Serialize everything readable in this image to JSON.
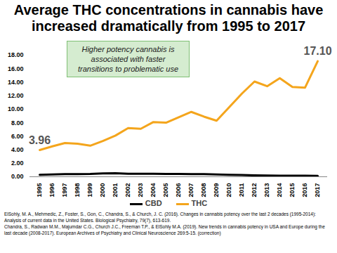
{
  "chart_data": {
    "type": "line",
    "title": "Average THC concentrations in cannabis have increased dramatically from 1995 to 2017",
    "categories": [
      "1995",
      "1996",
      "1997",
      "1998",
      "1999",
      "2000",
      "2001",
      "2002",
      "2003",
      "2004",
      "2005",
      "2006",
      "2007",
      "2008",
      "2009",
      "2010",
      "2011",
      "2012",
      "2013",
      "2014",
      "2015",
      "2016",
      "2017"
    ],
    "series": [
      {
        "name": "CBD",
        "color": "#000000",
        "values": [
          0.28,
          0.35,
          0.4,
          0.4,
          0.42,
          0.5,
          0.52,
          0.45,
          0.45,
          0.45,
          0.42,
          0.42,
          0.4,
          0.38,
          0.35,
          0.28,
          0.25,
          0.2,
          0.18,
          0.15,
          0.15,
          0.15,
          0.12
        ]
      },
      {
        "name": "THC",
        "color": "#f4a51c",
        "values": [
          3.96,
          4.5,
          5.0,
          4.9,
          4.6,
          5.3,
          6.1,
          7.2,
          7.1,
          8.1,
          8.0,
          8.8,
          9.6,
          8.9,
          8.3,
          10.3,
          12.3,
          14.1,
          13.4,
          14.6,
          13.3,
          13.2,
          17.1
        ]
      }
    ],
    "ylim": [
      0,
      18
    ],
    "yticks": [
      {
        "value": 0,
        "label": "0.00"
      },
      {
        "value": 2,
        "label": "2.00"
      },
      {
        "value": 4,
        "label": "4.00"
      },
      {
        "value": 6,
        "label": "6.00"
      },
      {
        "value": 8,
        "label": "8.00"
      },
      {
        "value": 10,
        "label": "10.00"
      },
      {
        "value": 12,
        "label": "12.00"
      },
      {
        "value": 14,
        "label": "14.00"
      },
      {
        "value": 16,
        "label": "16.00"
      },
      {
        "value": 18,
        "label": "18.00"
      }
    ],
    "grid": false,
    "legend": "bottom",
    "annotations": [
      {
        "x": "1995",
        "y": 3.96,
        "text": "3.96"
      },
      {
        "x": "2017",
        "y": 17.1,
        "text": "17.10"
      }
    ],
    "note": [
      "Higher potency cannabis is",
      "associated with faster",
      "transitions to problematic use"
    ],
    "references": [
      "ElSohly, M. A., Mehmedic, Z., Foster, S., Gon, C., Chandra, S., & Church, J. C. (2016). Changes in cannabis potency over the last 2 decades (1995-2014): Analysis of current data in the United States. Biological Psychiatry, 79(7), 613-619.",
      "Chandra, S., Radwan M.M., Majumdar C.G., Church J.C., Freeman T.P., & ElSohly M.A. (2019). New trends in cannabis potency in USA and Europe during the last decade (2008-2017). European Archives of Psychiatry and Clinical Neuroscience 269:5-15. (correction)"
    ]
  }
}
